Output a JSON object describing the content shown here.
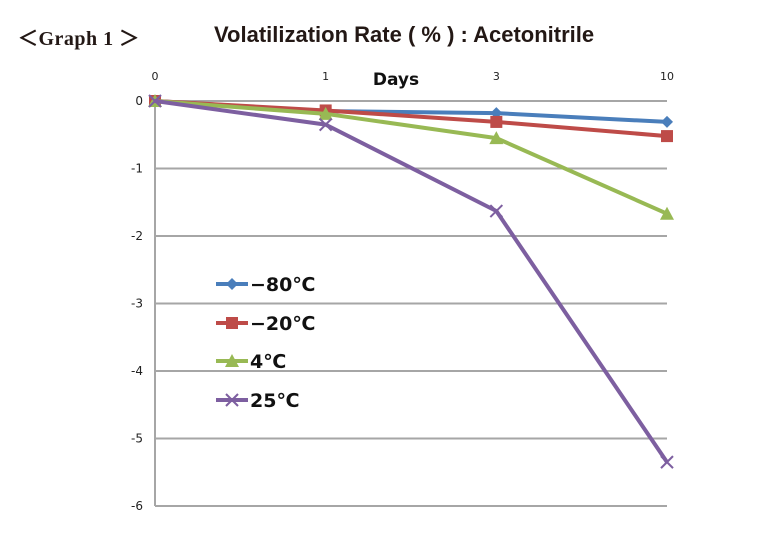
{
  "header": {
    "graph_label": "＜Graph 1 ＞",
    "title": "Volatilization Rate ( % ) : Acetonitrile"
  },
  "chart_data": {
    "type": "line",
    "title": "Volatilization Rate ( % ) : Acetonitrile",
    "xlabel": "Days",
    "ylabel": "",
    "x": [
      "0",
      "1",
      "3",
      "10"
    ],
    "x_axis_position": "top",
    "x_scale": "categorical-evenly-spaced",
    "ylim": [
      -6,
      0
    ],
    "yticks": [
      0,
      -1,
      -2,
      -3,
      -4,
      -5,
      -6
    ],
    "grid": true,
    "legend_position": "center-left",
    "series": [
      {
        "name": "−80℃",
        "color": "#4a7ebb",
        "marker": "diamond",
        "values": [
          0,
          -0.15,
          -0.18,
          -0.31
        ]
      },
      {
        "name": "−20℃",
        "color": "#be4b48",
        "marker": "square",
        "values": [
          0,
          -0.14,
          -0.31,
          -0.52
        ]
      },
      {
        "name": "4℃",
        "color": "#98b954",
        "marker": "triangle",
        "values": [
          0,
          -0.19,
          -0.55,
          -1.67
        ]
      },
      {
        "name": "25℃",
        "color": "#7d5fa0",
        "marker": "x",
        "values": [
          0,
          -0.35,
          -1.63,
          -5.35
        ]
      }
    ]
  }
}
